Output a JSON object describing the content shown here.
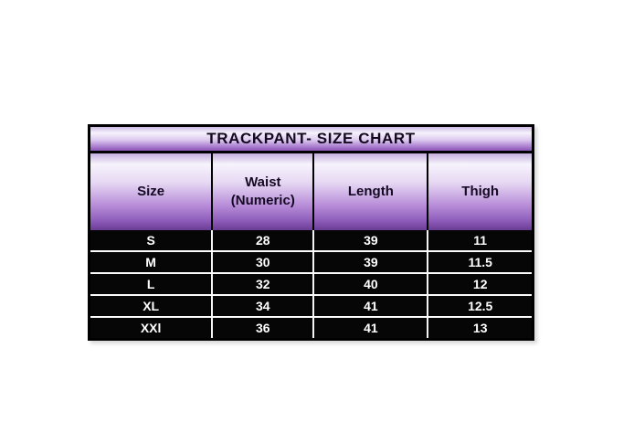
{
  "page": {
    "background_color": "#ffffff"
  },
  "chart_data": {
    "type": "table",
    "title": "TRACKPANT- SIZE CHART",
    "columns": [
      "Size",
      "Waist (Numeric)",
      "Length",
      "Thigh"
    ],
    "rows": [
      [
        "S",
        "28",
        "39",
        "11"
      ],
      [
        "M",
        "30",
        "39",
        "11.5"
      ],
      [
        "L",
        "32",
        "40",
        "12"
      ],
      [
        "XL",
        "34",
        "41",
        "12.5"
      ],
      [
        "XXl",
        "36",
        "41",
        "13"
      ]
    ]
  },
  "colors": {
    "purple_gradient_light": "#f6f2fb",
    "purple_gradient_mid": "#b78cd8",
    "purple_gradient_dark": "#6a3c94",
    "heading_text": "#140a20",
    "data_row_background": "#060606",
    "data_row_text": "#ffffff",
    "table_border": "#000000",
    "row_separator": "#fbfbfb"
  }
}
